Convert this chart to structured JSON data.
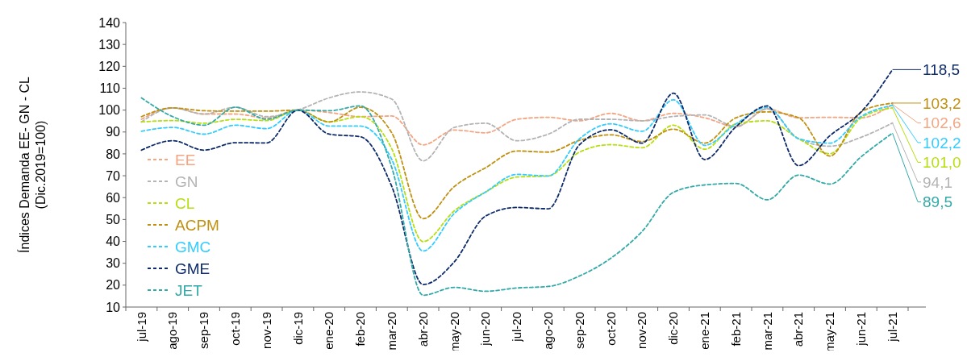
{
  "chart_data": {
    "type": "line",
    "ylabel": "Índices Demanda EE- GN - CL\n(Dic.2019=100)",
    "categories": [
      "jul-19",
      "ago-19",
      "sep-19",
      "oct-19",
      "nov-19",
      "dic-19",
      "ene-20",
      "feb-20",
      "mar-20",
      "abr-20",
      "may-20",
      "jun-20",
      "jul-20",
      "ago-20",
      "sep-20",
      "oct-20",
      "nov-20",
      "dic-20",
      "ene-21",
      "feb-21",
      "mar-21",
      "abr-21",
      "may-21",
      "jun-21",
      "jul-21"
    ],
    "ylim": [
      10,
      140
    ],
    "yticks": [
      10,
      20,
      30,
      40,
      50,
      60,
      70,
      80,
      90,
      100,
      110,
      120,
      130,
      140
    ],
    "legend": "left",
    "line_style": "dashed",
    "grid": false,
    "series": [
      {
        "name": "EE",
        "color": "#f4a582",
        "values": [
          95.8,
          101,
          98.2,
          98.2,
          96.4,
          100,
          98.9,
          97,
          97.3,
          84.1,
          90.9,
          89.6,
          95.8,
          96.7,
          95.1,
          98.5,
          95.1,
          98.5,
          96.5,
          92.4,
          100.6,
          96.5,
          96.7,
          96.5,
          102.6
        ],
        "value_labels": [
          null,
          null,
          null,
          null,
          null,
          null,
          null,
          null,
          null,
          null,
          null,
          null,
          null,
          null,
          null,
          null,
          null,
          null,
          null,
          null,
          null,
          null,
          null,
          null,
          "102,6"
        ]
      },
      {
        "name": "GN",
        "color": "#b4b4b4",
        "values": [
          94.6,
          101,
          98.2,
          101.3,
          97,
          100,
          105.6,
          108.3,
          105,
          76.8,
          92.1,
          94,
          86,
          89,
          95.8,
          95.8,
          95.1,
          97.1,
          97.8,
          92.4,
          100.6,
          86.9,
          83.5,
          87.6,
          94.1
        ],
        "value_labels": [
          null,
          null,
          null,
          null,
          null,
          null,
          null,
          null,
          null,
          null,
          null,
          null,
          null,
          null,
          null,
          null,
          null,
          null,
          null,
          null,
          null,
          null,
          null,
          null,
          "94,1"
        ]
      },
      {
        "name": "CL",
        "color": "#b5df10",
        "values": [
          94.6,
          95.2,
          94,
          95.8,
          95.2,
          100,
          94.6,
          97,
          82.3,
          39.9,
          54,
          62.6,
          69.4,
          69.9,
          80.8,
          84.2,
          82.8,
          93.1,
          82.1,
          93.7,
          95.1,
          86.9,
          80.1,
          96.5,
          101.0
        ],
        "value_labels": [
          null,
          null,
          null,
          null,
          null,
          null,
          null,
          null,
          null,
          null,
          null,
          null,
          null,
          null,
          null,
          null,
          null,
          null,
          null,
          null,
          null,
          null,
          null,
          null,
          "101,0"
        ]
      },
      {
        "name": "ACPM",
        "color": "#c09010",
        "values": [
          97,
          101,
          99.7,
          99.5,
          99.5,
          100,
          94.6,
          101.3,
          89.6,
          50.4,
          65.1,
          73.7,
          81.3,
          80.8,
          86.2,
          88.7,
          85.6,
          91.3,
          84.9,
          96.5,
          99.2,
          96.5,
          79,
          99.2,
          103.2
        ],
        "value_labels": [
          null,
          null,
          null,
          null,
          null,
          null,
          null,
          null,
          null,
          null,
          null,
          null,
          null,
          null,
          null,
          null,
          null,
          null,
          null,
          null,
          null,
          null,
          null,
          null,
          "103,2"
        ]
      },
      {
        "name": "GMC",
        "color": "#33ccff",
        "values": [
          90.3,
          92.1,
          89,
          93.1,
          91.5,
          100,
          92.7,
          92.7,
          77.4,
          35.6,
          52.8,
          62.6,
          70.6,
          69.9,
          86.9,
          93.7,
          90.3,
          104.7,
          83.9,
          93.7,
          101.2,
          86.9,
          84.9,
          97.1,
          102.2
        ],
        "value_labels": [
          null,
          null,
          null,
          null,
          null,
          null,
          null,
          null,
          null,
          null,
          null,
          null,
          null,
          null,
          null,
          null,
          null,
          null,
          null,
          null,
          null,
          null,
          null,
          null,
          "102,2"
        ]
      },
      {
        "name": "GME",
        "color": "#0d2a6b",
        "values": [
          81.7,
          86,
          81.7,
          85.1,
          85,
          100,
          89,
          87.8,
          65.1,
          20.3,
          30.7,
          51.6,
          55.5,
          54.9,
          84.2,
          91,
          84.9,
          107.7,
          77.4,
          92.4,
          101.9,
          74.6,
          88.3,
          99.2,
          118.5
        ],
        "value_labels": [
          null,
          null,
          null,
          null,
          null,
          null,
          null,
          null,
          null,
          null,
          null,
          null,
          null,
          null,
          null,
          null,
          null,
          null,
          null,
          null,
          null,
          null,
          null,
          null,
          "118,5"
        ]
      },
      {
        "name": "JET",
        "color": "#33aaa8",
        "values": [
          105.6,
          97,
          93.1,
          101.3,
          95.8,
          100,
          99.7,
          101.9,
          73.7,
          15.4,
          19,
          17.2,
          18.7,
          19.4,
          24.2,
          32.3,
          44.6,
          62.4,
          65.8,
          66.5,
          59,
          70.3,
          66.2,
          78.7,
          89.5
        ],
        "value_labels": [
          null,
          null,
          null,
          null,
          null,
          null,
          null,
          null,
          null,
          null,
          null,
          null,
          null,
          null,
          null,
          null,
          null,
          null,
          null,
          null,
          null,
          null,
          null,
          null,
          "89,5"
        ]
      }
    ]
  }
}
